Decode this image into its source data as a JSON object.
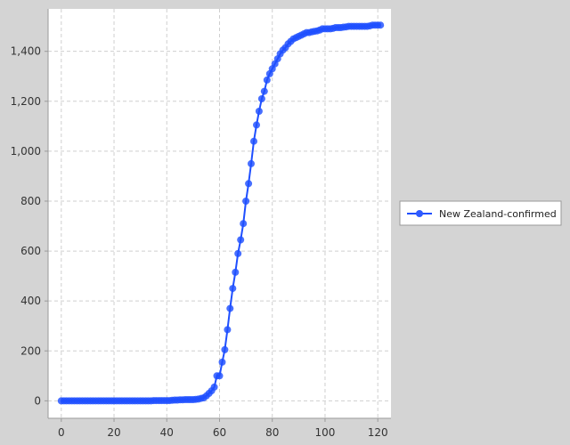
{
  "colors": {
    "background": "#d4d4d4",
    "plot_background": "#ffffff",
    "series": "#1f4fff",
    "grid": "#cfcfcf",
    "axis": "#9a9a9a"
  },
  "chart_data": {
    "type": "line",
    "title": "",
    "xlabel": "",
    "ylabel": "",
    "xlim": [
      -5,
      125
    ],
    "ylim": [
      -70,
      1570
    ],
    "x_ticks": [
      0,
      20,
      40,
      60,
      80,
      100,
      120
    ],
    "x_tick_labels": [
      "0",
      "20",
      "40",
      "60",
      "80",
      "100",
      "120"
    ],
    "y_ticks": [
      0,
      200,
      400,
      600,
      800,
      1000,
      1200,
      1400
    ],
    "y_tick_labels": [
      "0",
      "200",
      "400",
      "600",
      "800",
      "1,000",
      "1,200",
      "1,400"
    ],
    "grid": true,
    "legend": "right",
    "series": [
      {
        "name": "New Zealand-confirmed",
        "marker": "circle",
        "x": [
          0,
          1,
          2,
          3,
          4,
          5,
          6,
          7,
          8,
          9,
          10,
          11,
          12,
          13,
          14,
          15,
          16,
          17,
          18,
          19,
          20,
          21,
          22,
          23,
          24,
          25,
          26,
          27,
          28,
          29,
          30,
          31,
          32,
          33,
          34,
          35,
          36,
          37,
          38,
          39,
          40,
          41,
          42,
          43,
          44,
          45,
          46,
          47,
          48,
          49,
          50,
          51,
          52,
          53,
          54,
          55,
          56,
          57,
          58,
          59,
          60,
          61,
          62,
          63,
          64,
          65,
          66,
          67,
          68,
          69,
          70,
          71,
          72,
          73,
          74,
          75,
          76,
          77,
          78,
          79,
          80,
          81,
          82,
          83,
          84,
          85,
          86,
          87,
          88,
          89,
          90,
          91,
          92,
          93,
          94,
          95,
          96,
          97,
          98,
          99,
          100,
          101,
          102,
          103,
          104,
          105,
          106,
          107,
          108,
          109,
          110,
          111,
          112,
          113,
          114,
          115,
          116,
          117,
          118,
          119,
          120,
          121
        ],
        "values": [
          0,
          0,
          0,
          0,
          0,
          0,
          0,
          0,
          0,
          0,
          0,
          0,
          0,
          0,
          0,
          0,
          0,
          0,
          0,
          0,
          0,
          0,
          0,
          0,
          0,
          0,
          0,
          0,
          0,
          0,
          0,
          0,
          0,
          0,
          0,
          1,
          1,
          1,
          1,
          1,
          1,
          1,
          2,
          3,
          3,
          4,
          4,
          5,
          5,
          5,
          5,
          6,
          7,
          10,
          12,
          20,
          30,
          40,
          55,
          100,
          100,
          155,
          205,
          285,
          370,
          450,
          515,
          590,
          645,
          710,
          800,
          870,
          950,
          1040,
          1105,
          1160,
          1210,
          1240,
          1285,
          1310,
          1330,
          1350,
          1370,
          1390,
          1405,
          1415,
          1430,
          1440,
          1450,
          1455,
          1460,
          1465,
          1470,
          1475,
          1475,
          1478,
          1480,
          1482,
          1485,
          1490,
          1490,
          1490,
          1490,
          1492,
          1495,
          1495,
          1495,
          1497,
          1498,
          1500,
          1500,
          1500,
          1500,
          1500,
          1500,
          1500,
          1500,
          1502,
          1505,
          1505,
          1505,
          1505
        ]
      }
    ]
  }
}
